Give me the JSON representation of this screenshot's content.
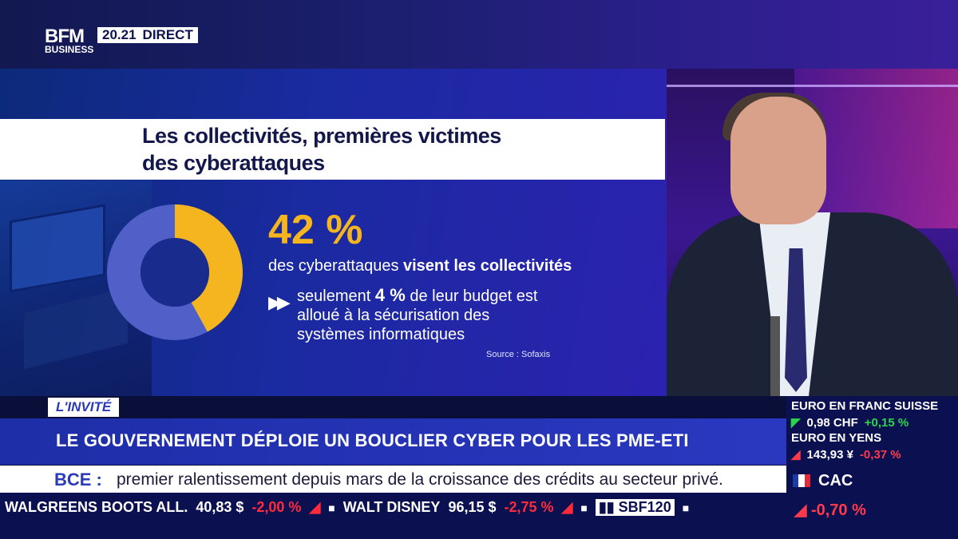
{
  "header": {
    "logo_line1": "BFM",
    "logo_line2": "BUSINESS",
    "time": "20.21",
    "live_label": "DIRECT"
  },
  "infographic": {
    "title": "Les collectivités, premières victimes des cyberattaques",
    "stat_value": "42 %",
    "stat_text_plain": "des cyberattaques ",
    "stat_text_bold": "visent les collectivités",
    "bullet_prefix": "seulement ",
    "bullet_bold": "4 %",
    "bullet_suffix": " de leur budget est alloué à la sécurisation des systèmes informatiques",
    "source": "Source : Sofaxis",
    "donut_fraction": 0.42,
    "donut_color": "#f5b51e",
    "donut_rest_color": "#5060c8"
  },
  "lower_third": {
    "tag": "L'INVITÉ",
    "headline": "LE GOUVERNEMENT DÉPLOIE UN BOUCLIER CYBER POUR LES PME-ETI",
    "news_label": "BCE :",
    "news_text": "premier ralentissement depuis mars de la croissance des crédits au secteur privé."
  },
  "ticker": [
    {
      "name": "WALGREENS BOOTS ALL.",
      "value": "40,83 $",
      "change": "-2,00 %"
    },
    {
      "name": "WALT DISNEY",
      "value": "96,15 $",
      "change": "-2,75 %"
    },
    {
      "name": "SBF120",
      "value": "",
      "change": ""
    }
  ],
  "markets": [
    {
      "title": "EURO EN FRANC SUISSE",
      "value": "0,98 CHF",
      "change": "+0,15 %",
      "direction": "up"
    },
    {
      "title": "EURO EN YENS",
      "value": "143,93 ¥",
      "change": "-0,37 %",
      "direction": "down"
    }
  ],
  "cac": {
    "name": "CAC",
    "change": "-0,70 %"
  }
}
